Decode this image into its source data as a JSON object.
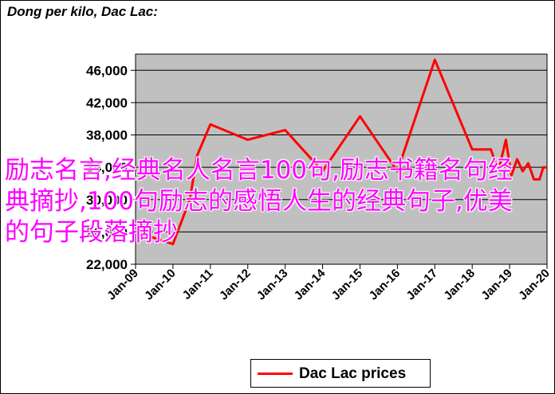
{
  "overlay": {
    "text": "励志名言,经典名人名言100句,励志书籍名句经典摘抄,100句励志的感悟人生的经典句子,优美的句子段落摘抄"
  },
  "chart_data": {
    "type": "line",
    "title": "Dong per kilo, Dac Lac:",
    "xlabel": "",
    "ylabel": "",
    "ylim": [
      22000,
      48000
    ],
    "yticks": [
      22000,
      26000,
      30000,
      34000,
      38000,
      42000,
      46000
    ],
    "ytick_labels": [
      "22,000",
      "26,000",
      "30,000",
      "34,000",
      "38,000",
      "42,000",
      "46,000"
    ],
    "xlim": [
      2009.0,
      2020.0
    ],
    "xticks": [
      2009,
      2010,
      2011,
      2012,
      2013,
      2014,
      2015,
      2016,
      2017,
      2018,
      2019,
      2020
    ],
    "xtick_labels": [
      "Jan-09",
      "Jan-10",
      "Jan-11",
      "Jan-12",
      "Jan-13",
      "Jan-14",
      "Jan-15",
      "Jan-16",
      "Jan-17",
      "Jan-18",
      "Jan-19",
      "Jan-20"
    ],
    "grid": "horizontal",
    "legend": "bottom-center",
    "series": [
      {
        "name": "Dac Lac prices",
        "color": "#ff0000",
        "x": [
          2009.0,
          2010.0,
          2010.45,
          2010.65,
          2011.0,
          2012.0,
          2013.0,
          2014.0,
          2015.0,
          2016.0,
          2017.0,
          2018.0,
          2018.5,
          2018.7,
          2018.9,
          2019.05,
          2019.2,
          2019.35,
          2019.5,
          2019.65,
          2019.8,
          2019.9,
          2020.0
        ],
        "y": [
          26000,
          24500,
          30000,
          35500,
          39300,
          37400,
          38600,
          33500,
          40300,
          33500,
          47300,
          36200,
          36200,
          33500,
          37400,
          33000,
          35000,
          33500,
          34500,
          32500,
          32500,
          34000,
          34000
        ]
      }
    ]
  }
}
